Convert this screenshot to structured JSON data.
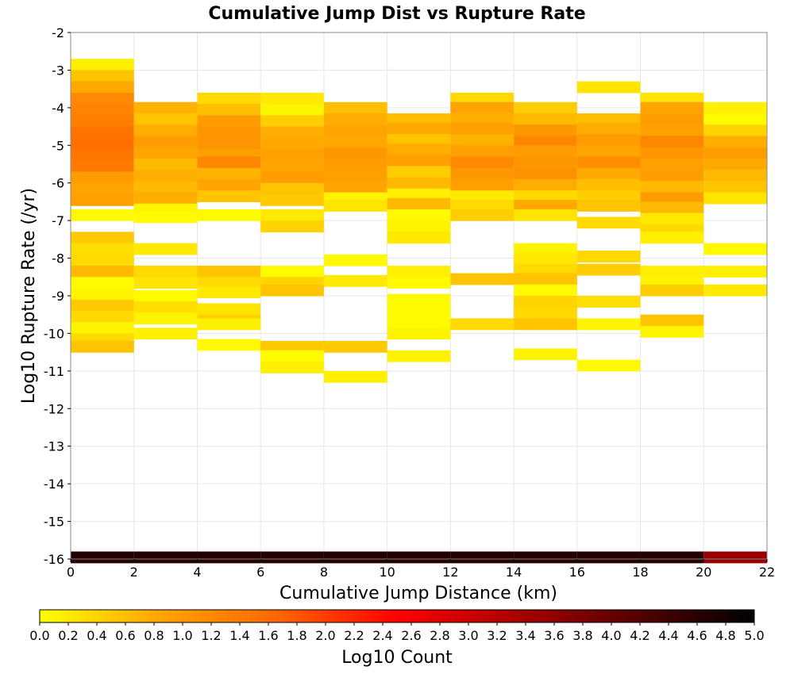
{
  "chart_data": {
    "type": "heatmap",
    "title": "Cumulative Jump Dist vs Rupture Rate",
    "xlabel": "Cumulative Jump Distance (km)",
    "ylabel": "Log10 Rupture Rate (/yr)",
    "xlim": [
      0,
      22
    ],
    "ylim": [
      -16,
      -2
    ],
    "x_ticks": [
      0,
      2,
      4,
      6,
      8,
      10,
      12,
      14,
      16,
      18,
      20,
      22
    ],
    "y_ticks": [
      -2,
      -3,
      -4,
      -5,
      -6,
      -7,
      -8,
      -9,
      -10,
      -11,
      -12,
      -13,
      -14,
      -15,
      -16
    ],
    "grid": true,
    "colorbar": {
      "label": "Log10 Count",
      "range": [
        0,
        5
      ],
      "ticks": [
        "0.0",
        "0.2",
        "0.4",
        "0.6",
        "0.8",
        "1.0",
        "1.2",
        "1.4",
        "1.6",
        "1.8",
        "2.0",
        "2.2",
        "2.4",
        "2.6",
        "2.8",
        "3.0",
        "3.2",
        "3.4",
        "3.6",
        "3.8",
        "4.0",
        "4.2",
        "4.4",
        "4.6",
        "4.8",
        "5.0"
      ],
      "colors": [
        "#ffff00",
        "#ffa500",
        "#ff6600",
        "#ff0000",
        "#aa0000",
        "#550000",
        "#000000"
      ]
    },
    "bin_width_x": 2,
    "bin_height_y": 0.3,
    "columns": [
      {
        "x": 1,
        "cells": [
          [
            -2.85,
            0.15
          ],
          [
            -3.15,
            0.55
          ],
          [
            -3.45,
            0.8
          ],
          [
            -3.75,
            1.2
          ],
          [
            -4.05,
            1.3
          ],
          [
            -4.35,
            1.35
          ],
          [
            -4.65,
            1.5
          ],
          [
            -4.95,
            1.55
          ],
          [
            -5.25,
            1.45
          ],
          [
            -5.55,
            1.4
          ],
          [
            -5.85,
            0.95
          ],
          [
            -6.15,
            0.85
          ],
          [
            -6.45,
            0.9
          ],
          [
            -6.85,
            0.05
          ],
          [
            -7.45,
            0.5
          ],
          [
            -7.75,
            0.3
          ],
          [
            -8.05,
            0.35
          ],
          [
            -8.35,
            0.65
          ],
          [
            -8.65,
            0.05
          ],
          [
            -8.95,
            0.1
          ],
          [
            -9.25,
            0.5
          ],
          [
            -9.55,
            0.35
          ],
          [
            -9.85,
            0.1
          ],
          [
            -10.15,
            0.35
          ],
          [
            -10.35,
            0.55
          ],
          [
            -15.95,
            4.65
          ]
        ]
      },
      {
        "x": 3,
        "cells": [
          [
            -4.0,
            0.7
          ],
          [
            -4.3,
            0.55
          ],
          [
            -4.6,
            0.75
          ],
          [
            -4.9,
            0.95
          ],
          [
            -5.2,
            0.85
          ],
          [
            -5.5,
            0.65
          ],
          [
            -5.8,
            0.75
          ],
          [
            -6.1,
            0.65
          ],
          [
            -6.4,
            0.75
          ],
          [
            -6.7,
            0.1
          ],
          [
            -6.9,
            0.05
          ],
          [
            -7.75,
            0.2
          ],
          [
            -8.35,
            0.35
          ],
          [
            -8.65,
            0.25
          ],
          [
            -9.0,
            0.05
          ],
          [
            -9.3,
            0.3
          ],
          [
            -9.6,
            0.1
          ],
          [
            -10.0,
            0.15
          ],
          [
            -15.95,
            4.65
          ]
        ]
      },
      {
        "x": 5,
        "cells": [
          [
            -3.75,
            0.35
          ],
          [
            -4.05,
            0.6
          ],
          [
            -4.35,
            0.95
          ],
          [
            -4.65,
            1.05
          ],
          [
            -4.95,
            1.05
          ],
          [
            -5.25,
            0.9
          ],
          [
            -5.45,
            1.25
          ],
          [
            -5.75,
            0.7
          ],
          [
            -6.05,
            0.85
          ],
          [
            -6.35,
            0.55
          ],
          [
            -6.85,
            0.05
          ],
          [
            -8.35,
            0.55
          ],
          [
            -8.65,
            0.35
          ],
          [
            -8.9,
            0.2
          ],
          [
            -9.35,
            0.25
          ],
          [
            -9.65,
            0.45
          ],
          [
            -9.75,
            0.15
          ],
          [
            -10.3,
            0.05
          ],
          [
            -15.95,
            4.65
          ]
        ]
      },
      {
        "x": 7,
        "cells": [
          [
            -3.75,
            0.2
          ],
          [
            -4.05,
            0.1
          ],
          [
            -4.35,
            0.45
          ],
          [
            -4.65,
            0.75
          ],
          [
            -4.95,
            0.8
          ],
          [
            -5.25,
            0.9
          ],
          [
            -5.55,
            0.85
          ],
          [
            -5.85,
            0.95
          ],
          [
            -6.15,
            0.55
          ],
          [
            -6.45,
            0.5
          ],
          [
            -6.85,
            0.2
          ],
          [
            -7.15,
            0.4
          ],
          [
            -8.35,
            0.05
          ],
          [
            -8.65,
            0.4
          ],
          [
            -8.85,
            0.55
          ],
          [
            -10.35,
            0.5
          ],
          [
            -10.6,
            0.05
          ],
          [
            -10.9,
            0.15
          ],
          [
            -15.95,
            4.65
          ]
        ]
      },
      {
        "x": 9,
        "cells": [
          [
            -4.0,
            0.6
          ],
          [
            -4.3,
            0.75
          ],
          [
            -4.6,
            0.85
          ],
          [
            -4.9,
            0.8
          ],
          [
            -5.2,
            1.0
          ],
          [
            -5.5,
            0.95
          ],
          [
            -5.8,
            0.9
          ],
          [
            -6.1,
            0.85
          ],
          [
            -6.4,
            0.1
          ],
          [
            -6.6,
            0.25
          ],
          [
            -8.05,
            0.05
          ],
          [
            -8.6,
            0.2
          ],
          [
            -10.35,
            0.5
          ],
          [
            -11.15,
            0.15
          ],
          [
            -15.95,
            4.65
          ]
        ]
      },
      {
        "x": 11,
        "cells": [
          [
            -4.3,
            0.6
          ],
          [
            -4.55,
            0.8
          ],
          [
            -4.85,
            0.55
          ],
          [
            -5.1,
            0.75
          ],
          [
            -5.4,
            0.9
          ],
          [
            -5.7,
            0.45
          ],
          [
            -6.0,
            0.65
          ],
          [
            -6.3,
            0.15
          ],
          [
            -6.55,
            0.65
          ],
          [
            -6.85,
            0.05
          ],
          [
            -7.15,
            0.1
          ],
          [
            -7.45,
            0.2
          ],
          [
            -8.35,
            0.15
          ],
          [
            -8.65,
            0.05
          ],
          [
            -9.1,
            0.05
          ],
          [
            -9.4,
            0.05
          ],
          [
            -9.7,
            0.05
          ],
          [
            -10.0,
            0.1
          ],
          [
            -10.6,
            0.1
          ],
          [
            -15.95,
            4.65
          ]
        ]
      },
      {
        "x": 13,
        "cells": [
          [
            -3.75,
            0.35
          ],
          [
            -4.0,
            0.85
          ],
          [
            -4.3,
            0.75
          ],
          [
            -4.55,
            0.9
          ],
          [
            -4.85,
            0.7
          ],
          [
            -5.15,
            0.9
          ],
          [
            -5.45,
            1.2
          ],
          [
            -5.75,
            1.0
          ],
          [
            -6.05,
            0.9
          ],
          [
            -6.35,
            0.2
          ],
          [
            -6.6,
            0.35
          ],
          [
            -6.85,
            0.45
          ],
          [
            -8.55,
            0.55
          ],
          [
            -9.75,
            0.35
          ],
          [
            -15.95,
            4.65
          ]
        ]
      },
      {
        "x": 15,
        "cells": [
          [
            -4.0,
            0.45
          ],
          [
            -4.3,
            0.65
          ],
          [
            -4.6,
            1.0
          ],
          [
            -4.9,
            1.25
          ],
          [
            -5.15,
            0.95
          ],
          [
            -5.45,
            1.0
          ],
          [
            -5.75,
            1.1
          ],
          [
            -6.05,
            0.75
          ],
          [
            -6.35,
            0.35
          ],
          [
            -6.6,
            0.8
          ],
          [
            -6.85,
            0.25
          ],
          [
            -7.75,
            0.1
          ],
          [
            -8.0,
            0.2
          ],
          [
            -8.3,
            0.35
          ],
          [
            -8.55,
            0.55
          ],
          [
            -8.85,
            0.05
          ],
          [
            -9.15,
            0.4
          ],
          [
            -9.45,
            0.35
          ],
          [
            -9.75,
            0.55
          ],
          [
            -10.55,
            0.1
          ],
          [
            -15.95,
            4.65
          ]
        ]
      },
      {
        "x": 17,
        "cells": [
          [
            -3.45,
            0.25
          ],
          [
            -4.3,
            0.6
          ],
          [
            -4.55,
            0.75
          ],
          [
            -4.85,
            0.95
          ],
          [
            -5.15,
            0.85
          ],
          [
            -5.45,
            1.15
          ],
          [
            -5.75,
            0.8
          ],
          [
            -6.05,
            0.6
          ],
          [
            -6.35,
            0.45
          ],
          [
            -6.6,
            0.55
          ],
          [
            -7.05,
            0.35
          ],
          [
            -7.95,
            0.35
          ],
          [
            -8.3,
            0.45
          ],
          [
            -9.15,
            0.3
          ],
          [
            -9.75,
            0.1
          ],
          [
            -10.85,
            0.05
          ],
          [
            -15.95,
            4.65
          ]
        ]
      },
      {
        "x": 19,
        "cells": [
          [
            -3.75,
            0.25
          ],
          [
            -4.0,
            0.85
          ],
          [
            -4.3,
            0.95
          ],
          [
            -4.6,
            0.9
          ],
          [
            -4.9,
            1.25
          ],
          [
            -5.2,
            1.0
          ],
          [
            -5.5,
            0.9
          ],
          [
            -5.8,
            0.95
          ],
          [
            -6.1,
            0.65
          ],
          [
            -6.4,
            0.95
          ],
          [
            -6.65,
            0.65
          ],
          [
            -6.95,
            0.2
          ],
          [
            -7.25,
            0.35
          ],
          [
            -7.45,
            0.15
          ],
          [
            -8.35,
            0.15
          ],
          [
            -8.65,
            0.1
          ],
          [
            -8.85,
            0.45
          ],
          [
            -9.65,
            0.55
          ],
          [
            -9.95,
            0.1
          ],
          [
            -15.95,
            4.65
          ]
        ]
      },
      {
        "x": 21,
        "cells": [
          [
            -4.0,
            0.15
          ],
          [
            -4.3,
            0.05
          ],
          [
            -4.6,
            0.4
          ],
          [
            -4.9,
            0.75
          ],
          [
            -5.2,
            0.95
          ],
          [
            -5.5,
            0.8
          ],
          [
            -5.8,
            0.65
          ],
          [
            -6.1,
            0.55
          ],
          [
            -6.4,
            0.25
          ],
          [
            -7.75,
            0.05
          ],
          [
            -8.35,
            0.15
          ],
          [
            -8.85,
            0.2
          ],
          [
            -15.95,
            3.5
          ]
        ]
      }
    ]
  }
}
